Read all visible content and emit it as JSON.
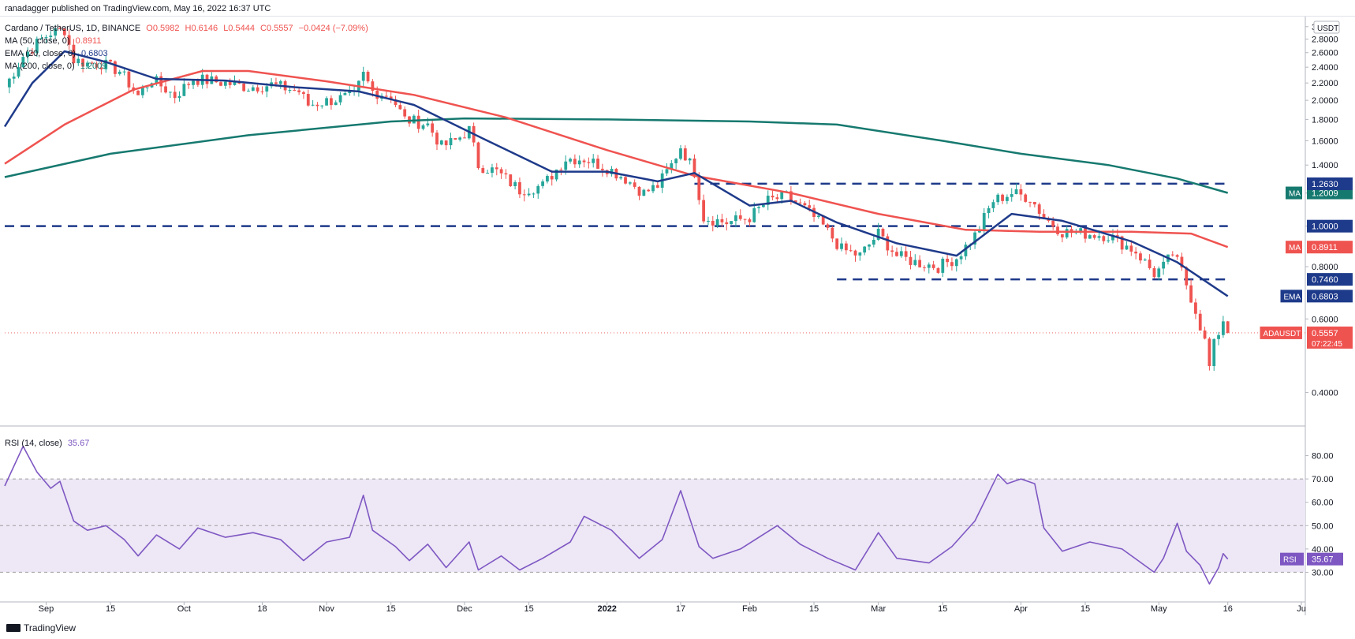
{
  "header": {
    "published_line": "ranadagger published on TradingView.com, May 16, 2022 16:37 UTC",
    "symbol_line": "Cardano / TetherUS, 1D, BINANCE",
    "open": "O0.5982",
    "high": "H0.6146",
    "low": "L0.5444",
    "close": "C0.5557",
    "change": "−0.0424 (−7.09%)",
    "ma50_label": "MA (50, close, 0)",
    "ma50_value": "0.8911",
    "ema20_label": "EMA (20, close, 0)",
    "ema20_value": "0.6803",
    "ma200_label": "MA (200, close, 0)",
    "ma200_value": "1.2009",
    "rsi_label": "RSI (14, close)",
    "rsi_value": "35.67"
  },
  "footer": {
    "brand": "TradingView"
  },
  "colors": {
    "up": "#26a69a",
    "down": "#ef5350",
    "ema20": "#1e3a8a",
    "ma50": "#ef5350",
    "ma200": "#16796f",
    "rsi": "#7e57c2",
    "rsi_band": "#ede7f6",
    "hline": "#1e3a8a"
  },
  "chart_data": [
    {
      "type": "candlestick",
      "symbol": "ADAUSDT",
      "ylim": [
        0.34,
        3.05
      ],
      "y_scale": "log",
      "currency_label": "USDT",
      "y_ticks": [
        "0.4000",
        "0.6000",
        "0.8000",
        "1.0000",
        "1.2000",
        "1.4000",
        "1.6000",
        "1.8000",
        "2.0000",
        "2.2000",
        "2.4000",
        "2.6000",
        "2.8000",
        "3.0000"
      ],
      "y_tick_values": [
        0.4,
        0.6,
        0.8,
        1.0,
        1.2,
        1.4,
        1.6,
        1.8,
        2.0,
        2.2,
        2.4,
        2.6,
        2.8,
        3.0
      ],
      "x_range": [
        "2021-08-23",
        "2022-06-01"
      ],
      "x_ticks": [
        {
          "label": "Sep",
          "date": "2021-09-01"
        },
        {
          "label": "15",
          "date": "2021-09-15"
        },
        {
          "label": "Oct",
          "date": "2021-10-01"
        },
        {
          "label": "18",
          "date": "2021-10-18"
        },
        {
          "label": "Nov",
          "date": "2021-11-01"
        },
        {
          "label": "15",
          "date": "2021-11-15"
        },
        {
          "label": "Dec",
          "date": "2021-12-01"
        },
        {
          "label": "15",
          "date": "2021-12-15"
        },
        {
          "label": "2022",
          "date": "2022-01-01"
        },
        {
          "label": "17",
          "date": "2022-01-17"
        },
        {
          "label": "Feb",
          "date": "2022-02-01"
        },
        {
          "label": "15",
          "date": "2022-02-15"
        },
        {
          "label": "Mar",
          "date": "2022-03-01"
        },
        {
          "label": "15",
          "date": "2022-03-15"
        },
        {
          "label": "Apr",
          "date": "2022-04-01"
        },
        {
          "label": "15",
          "date": "2022-04-15"
        },
        {
          "label": "May",
          "date": "2022-05-01"
        },
        {
          "label": "16",
          "date": "2022-05-16"
        },
        {
          "label": "Ju",
          "date": "2022-06-01"
        }
      ],
      "price_path": [
        {
          "date": "2021-08-23",
          "close": 2.15
        },
        {
          "date": "2021-08-27",
          "close": 2.55
        },
        {
          "date": "2021-08-31",
          "close": 2.8
        },
        {
          "date": "2021-09-02",
          "close": 2.9
        },
        {
          "date": "2021-09-05",
          "close": 2.95
        },
        {
          "date": "2021-09-07",
          "close": 2.5
        },
        {
          "date": "2021-09-10",
          "close": 2.45
        },
        {
          "date": "2021-09-13",
          "close": 2.45
        },
        {
          "date": "2021-09-17",
          "close": 2.35
        },
        {
          "date": "2021-09-21",
          "close": 2.05
        },
        {
          "date": "2021-09-24",
          "close": 2.25
        },
        {
          "date": "2021-09-29",
          "close": 2.05
        },
        {
          "date": "2021-10-03",
          "close": 2.25
        },
        {
          "date": "2021-10-10",
          "close": 2.2
        },
        {
          "date": "2021-10-15",
          "close": 2.15
        },
        {
          "date": "2021-10-20",
          "close": 2.18
        },
        {
          "date": "2021-10-26",
          "close": 2.1
        },
        {
          "date": "2021-10-28",
          "close": 1.95
        },
        {
          "date": "2021-11-02",
          "close": 2.0
        },
        {
          "date": "2021-11-07",
          "close": 2.05
        },
        {
          "date": "2021-11-09",
          "close": 2.3
        },
        {
          "date": "2021-11-11",
          "close": 2.1
        },
        {
          "date": "2021-11-15",
          "close": 2.05
        },
        {
          "date": "2021-11-18",
          "close": 1.8
        },
        {
          "date": "2021-11-23",
          "close": 1.75
        },
        {
          "date": "2021-11-26",
          "close": 1.55
        },
        {
          "date": "2021-11-29",
          "close": 1.6
        },
        {
          "date": "2021-12-02",
          "close": 1.7
        },
        {
          "date": "2021-12-04",
          "close": 1.4
        },
        {
          "date": "2021-12-08",
          "close": 1.35
        },
        {
          "date": "2021-12-13",
          "close": 1.22
        },
        {
          "date": "2021-12-18",
          "close": 1.25
        },
        {
          "date": "2021-12-23",
          "close": 1.45
        },
        {
          "date": "2021-12-27",
          "close": 1.45
        },
        {
          "date": "2022-01-01",
          "close": 1.38
        },
        {
          "date": "2022-01-05",
          "close": 1.3
        },
        {
          "date": "2022-01-09",
          "close": 1.2
        },
        {
          "date": "2022-01-12",
          "close": 1.25
        },
        {
          "date": "2022-01-15",
          "close": 1.4
        },
        {
          "date": "2022-01-17",
          "close": 1.55
        },
        {
          "date": "2022-01-20",
          "close": 1.35
        },
        {
          "date": "2022-01-22",
          "close": 1.05
        },
        {
          "date": "2022-01-27",
          "close": 1.02
        },
        {
          "date": "2022-02-01",
          "close": 1.05
        },
        {
          "date": "2022-02-05",
          "close": 1.15
        },
        {
          "date": "2022-02-09",
          "close": 1.18
        },
        {
          "date": "2022-02-13",
          "close": 1.1
        },
        {
          "date": "2022-02-17",
          "close": 1.0
        },
        {
          "date": "2022-02-21",
          "close": 0.88
        },
        {
          "date": "2022-02-25",
          "close": 0.85
        },
        {
          "date": "2022-03-01",
          "close": 0.96
        },
        {
          "date": "2022-03-05",
          "close": 0.85
        },
        {
          "date": "2022-03-09",
          "close": 0.82
        },
        {
          "date": "2022-03-14",
          "close": 0.8
        },
        {
          "date": "2022-03-18",
          "close": 0.84
        },
        {
          "date": "2022-03-22",
          "close": 0.95
        },
        {
          "date": "2022-03-26",
          "close": 1.15
        },
        {
          "date": "2022-03-30",
          "close": 1.2
        },
        {
          "date": "2022-04-03",
          "close": 1.17
        },
        {
          "date": "2022-04-06",
          "close": 1.05
        },
        {
          "date": "2022-04-10",
          "close": 0.97
        },
        {
          "date": "2022-04-15",
          "close": 0.96
        },
        {
          "date": "2022-04-20",
          "close": 0.95
        },
        {
          "date": "2022-04-26",
          "close": 0.87
        },
        {
          "date": "2022-04-30",
          "close": 0.77
        },
        {
          "date": "2022-05-02",
          "close": 0.8
        },
        {
          "date": "2022-05-04",
          "close": 0.86
        },
        {
          "date": "2022-05-06",
          "close": 0.78
        },
        {
          "date": "2022-05-09",
          "close": 0.63
        },
        {
          "date": "2022-05-11",
          "close": 0.53
        },
        {
          "date": "2022-05-12",
          "close": 0.46
        },
        {
          "date": "2022-05-13",
          "close": 0.52
        },
        {
          "date": "2022-05-15",
          "close": 0.5981
        },
        {
          "date": "2022-05-16",
          "close": 0.5557
        }
      ],
      "ema20": [
        {
          "date": "2021-08-23",
          "v": 1.73
        },
        {
          "date": "2021-08-29",
          "v": 2.2
        },
        {
          "date": "2021-09-05",
          "v": 2.62
        },
        {
          "date": "2021-09-14",
          "v": 2.47
        },
        {
          "date": "2021-09-25",
          "v": 2.25
        },
        {
          "date": "2021-10-10",
          "v": 2.23
        },
        {
          "date": "2021-10-25",
          "v": 2.15
        },
        {
          "date": "2021-11-08",
          "v": 2.1
        },
        {
          "date": "2021-11-20",
          "v": 1.95
        },
        {
          "date": "2021-12-05",
          "v": 1.62
        },
        {
          "date": "2021-12-20",
          "v": 1.35
        },
        {
          "date": "2022-01-01",
          "v": 1.35
        },
        {
          "date": "2022-01-12",
          "v": 1.28
        },
        {
          "date": "2022-01-20",
          "v": 1.34
        },
        {
          "date": "2022-02-01",
          "v": 1.12
        },
        {
          "date": "2022-02-10",
          "v": 1.15
        },
        {
          "date": "2022-02-20",
          "v": 1.02
        },
        {
          "date": "2022-03-05",
          "v": 0.91
        },
        {
          "date": "2022-03-18",
          "v": 0.85
        },
        {
          "date": "2022-03-30",
          "v": 1.07
        },
        {
          "date": "2022-04-10",
          "v": 1.03
        },
        {
          "date": "2022-04-25",
          "v": 0.92
        },
        {
          "date": "2022-05-05",
          "v": 0.82
        },
        {
          "date": "2022-05-16",
          "v": 0.6803
        }
      ],
      "ma50": [
        {
          "date": "2021-08-23",
          "v": 1.41
        },
        {
          "date": "2021-09-05",
          "v": 1.75
        },
        {
          "date": "2021-09-20",
          "v": 2.12
        },
        {
          "date": "2021-10-05",
          "v": 2.35
        },
        {
          "date": "2021-10-15",
          "v": 2.35
        },
        {
          "date": "2021-11-01",
          "v": 2.22
        },
        {
          "date": "2021-11-20",
          "v": 2.06
        },
        {
          "date": "2021-12-10",
          "v": 1.82
        },
        {
          "date": "2022-01-01",
          "v": 1.52
        },
        {
          "date": "2022-01-20",
          "v": 1.32
        },
        {
          "date": "2022-02-10",
          "v": 1.2
        },
        {
          "date": "2022-03-01",
          "v": 1.07
        },
        {
          "date": "2022-03-20",
          "v": 0.98
        },
        {
          "date": "2022-04-05",
          "v": 0.97
        },
        {
          "date": "2022-04-25",
          "v": 0.97
        },
        {
          "date": "2022-05-08",
          "v": 0.96
        },
        {
          "date": "2022-05-16",
          "v": 0.8911
        }
      ],
      "ma200": [
        {
          "date": "2021-08-23",
          "v": 1.31
        },
        {
          "date": "2021-09-15",
          "v": 1.49
        },
        {
          "date": "2021-10-15",
          "v": 1.65
        },
        {
          "date": "2021-11-15",
          "v": 1.78
        },
        {
          "date": "2021-12-01",
          "v": 1.81
        },
        {
          "date": "2022-01-01",
          "v": 1.8
        },
        {
          "date": "2022-02-01",
          "v": 1.78
        },
        {
          "date": "2022-02-20",
          "v": 1.75
        },
        {
          "date": "2022-03-15",
          "v": 1.6
        },
        {
          "date": "2022-04-01",
          "v": 1.49
        },
        {
          "date": "2022-04-20",
          "v": 1.4
        },
        {
          "date": "2022-05-05",
          "v": 1.3
        },
        {
          "date": "2022-05-16",
          "v": 1.2009
        }
      ],
      "horizontal_lines": [
        {
          "value": 1.263,
          "label": "1.2630",
          "from": "2022-01-20",
          "to": "2022-05-16"
        },
        {
          "value": 1.0,
          "label": "1.0000",
          "from": "2021-08-23",
          "to": "2022-05-16"
        },
        {
          "value": 0.746,
          "label": "0.7460",
          "from": "2022-02-20",
          "to": "2022-05-16"
        }
      ],
      "price_labels": [
        {
          "tag": "MA",
          "value": "1.2009",
          "v": 1.2009,
          "color": "ma200"
        },
        {
          "tag": "",
          "value": "1.0000",
          "v": 1.0,
          "color": "hline"
        },
        {
          "tag": "MA",
          "value": "0.8911",
          "v": 0.8911,
          "color": "ma50"
        },
        {
          "tag": "",
          "value": "0.7460",
          "v": 0.746,
          "color": "hline"
        },
        {
          "tag": "EMA",
          "value": "0.6803",
          "v": 0.6803,
          "color": "ema20"
        },
        {
          "tag": "ADAUSDT",
          "value": "0.5557",
          "v": 0.5557,
          "color": "down",
          "extra": "07:22:45"
        },
        {
          "tag": "",
          "value": "1.2630",
          "v": 1.263,
          "color": "hline"
        }
      ]
    },
    {
      "type": "line",
      "name": "RSI (14, close)",
      "ylim": [
        20,
        90
      ],
      "y_ticks": [
        "30.00",
        "40.00",
        "50.00",
        "60.00",
        "70.00",
        "80.00"
      ],
      "y_tick_values": [
        30,
        40,
        50,
        60,
        70,
        80
      ],
      "band": [
        30,
        70
      ],
      "midline": 50,
      "current": "35.67",
      "points": [
        {
          "date": "2021-08-23",
          "v": 67
        },
        {
          "date": "2021-08-27",
          "v": 84
        },
        {
          "date": "2021-08-30",
          "v": 73
        },
        {
          "date": "2021-09-02",
          "v": 66
        },
        {
          "date": "2021-09-04",
          "v": 69
        },
        {
          "date": "2021-09-07",
          "v": 52
        },
        {
          "date": "2021-09-10",
          "v": 48
        },
        {
          "date": "2021-09-14",
          "v": 50
        },
        {
          "date": "2021-09-18",
          "v": 44
        },
        {
          "date": "2021-09-21",
          "v": 37
        },
        {
          "date": "2021-09-25",
          "v": 46
        },
        {
          "date": "2021-09-30",
          "v": 40
        },
        {
          "date": "2021-10-04",
          "v": 49
        },
        {
          "date": "2021-10-10",
          "v": 45
        },
        {
          "date": "2021-10-16",
          "v": 47
        },
        {
          "date": "2021-10-22",
          "v": 44
        },
        {
          "date": "2021-10-27",
          "v": 35
        },
        {
          "date": "2021-11-01",
          "v": 43
        },
        {
          "date": "2021-11-06",
          "v": 45
        },
        {
          "date": "2021-11-09",
          "v": 63
        },
        {
          "date": "2021-11-11",
          "v": 48
        },
        {
          "date": "2021-11-16",
          "v": 41
        },
        {
          "date": "2021-11-19",
          "v": 35
        },
        {
          "date": "2021-11-23",
          "v": 42
        },
        {
          "date": "2021-11-27",
          "v": 32
        },
        {
          "date": "2021-12-02",
          "v": 43
        },
        {
          "date": "2021-12-04",
          "v": 31
        },
        {
          "date": "2021-12-09",
          "v": 37
        },
        {
          "date": "2021-12-13",
          "v": 31
        },
        {
          "date": "2021-12-18",
          "v": 36
        },
        {
          "date": "2021-12-24",
          "v": 43
        },
        {
          "date": "2021-12-27",
          "v": 54
        },
        {
          "date": "2022-01-02",
          "v": 48
        },
        {
          "date": "2022-01-08",
          "v": 36
        },
        {
          "date": "2022-01-13",
          "v": 44
        },
        {
          "date": "2022-01-17",
          "v": 65
        },
        {
          "date": "2022-01-21",
          "v": 41
        },
        {
          "date": "2022-01-24",
          "v": 36
        },
        {
          "date": "2022-01-30",
          "v": 40
        },
        {
          "date": "2022-02-07",
          "v": 50
        },
        {
          "date": "2022-02-12",
          "v": 42
        },
        {
          "date": "2022-02-18",
          "v": 36
        },
        {
          "date": "2022-02-24",
          "v": 31
        },
        {
          "date": "2022-03-01",
          "v": 47
        },
        {
          "date": "2022-03-05",
          "v": 36
        },
        {
          "date": "2022-03-12",
          "v": 34
        },
        {
          "date": "2022-03-17",
          "v": 41
        },
        {
          "date": "2022-03-22",
          "v": 52
        },
        {
          "date": "2022-03-27",
          "v": 72
        },
        {
          "date": "2022-03-29",
          "v": 68
        },
        {
          "date": "2022-04-01",
          "v": 70
        },
        {
          "date": "2022-04-04",
          "v": 68
        },
        {
          "date": "2022-04-06",
          "v": 49
        },
        {
          "date": "2022-04-10",
          "v": 39
        },
        {
          "date": "2022-04-16",
          "v": 43
        },
        {
          "date": "2022-04-23",
          "v": 40
        },
        {
          "date": "2022-04-30",
          "v": 30
        },
        {
          "date": "2022-05-02",
          "v": 36
        },
        {
          "date": "2022-05-05",
          "v": 51
        },
        {
          "date": "2022-05-07",
          "v": 39
        },
        {
          "date": "2022-05-10",
          "v": 33
        },
        {
          "date": "2022-05-12",
          "v": 25
        },
        {
          "date": "2022-05-14",
          "v": 32
        },
        {
          "date": "2022-05-15",
          "v": 38
        },
        {
          "date": "2022-05-16",
          "v": 35.67
        }
      ]
    }
  ]
}
